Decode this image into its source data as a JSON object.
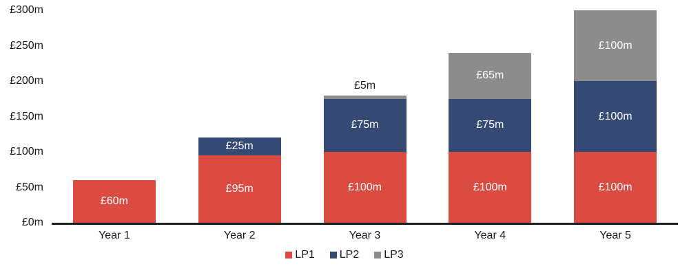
{
  "chart_data": {
    "type": "bar",
    "stacked": true,
    "title": "",
    "xlabel": "",
    "ylabel": "",
    "grid": false,
    "background": "#FFFFFF",
    "categories": [
      "Year 1",
      "Year 2",
      "Year 3",
      "Year 4",
      "Year 5"
    ],
    "series": [
      {
        "name": "LP1",
        "color": "#DC4B42",
        "values": [
          60,
          95,
          100,
          100,
          100
        ]
      },
      {
        "name": "LP2",
        "color": "#344A75",
        "values": [
          0,
          25,
          75,
          75,
          100
        ]
      },
      {
        "name": "LP3",
        "color": "#8C8C8C",
        "values": [
          0,
          0,
          5,
          65,
          100
        ]
      }
    ],
    "bars": [
      {
        "category": "Year 1",
        "segments": [
          {
            "series": "LP1",
            "value": 60,
            "label": "£60m"
          }
        ]
      },
      {
        "category": "Year 2",
        "segments": [
          {
            "series": "LP1",
            "value": 95,
            "label": "£95m"
          },
          {
            "series": "LP2",
            "value": 25,
            "label": "£25m"
          }
        ]
      },
      {
        "category": "Year 3",
        "segments": [
          {
            "series": "LP1",
            "value": 100,
            "label": "£100m"
          },
          {
            "series": "LP2",
            "value": 75,
            "label": "£75m"
          },
          {
            "series": "LP3",
            "value": 5,
            "label": "£5m"
          }
        ]
      },
      {
        "category": "Year 4",
        "segments": [
          {
            "series": "LP1",
            "value": 100,
            "label": "£100m"
          },
          {
            "series": "LP2",
            "value": 75,
            "label": "£75m"
          },
          {
            "series": "LP3",
            "value": 65,
            "label": "£65m"
          }
        ]
      },
      {
        "category": "Year 5",
        "segments": [
          {
            "series": "LP1",
            "value": 100,
            "label": "£100m"
          },
          {
            "series": "LP2",
            "value": 100,
            "label": "£100m"
          },
          {
            "series": "LP3",
            "value": 100,
            "label": "£100m"
          }
        ]
      }
    ],
    "y_axis": {
      "ylim": [
        0,
        300
      ],
      "tick_step": 50,
      "ticks": [
        {
          "value": 0,
          "label": "£0m"
        },
        {
          "value": 50,
          "label": "£50m"
        },
        {
          "value": 100,
          "label": "£100m"
        },
        {
          "value": 150,
          "label": "£150m"
        },
        {
          "value": 200,
          "label": "£200m"
        },
        {
          "value": 250,
          "label": "£250m"
        },
        {
          "value": 300,
          "label": "£300m"
        }
      ]
    },
    "legend": {
      "position": "bottom",
      "entries": [
        {
          "label": "LP1",
          "color": "#DC4B42"
        },
        {
          "label": "LP2",
          "color": "#344A75"
        },
        {
          "label": "LP3",
          "color": "#8C8C8C"
        }
      ]
    }
  },
  "colors": {
    "axis_line": "#1F1F1F",
    "tick_text": "#1A1A1A",
    "inside_bar_label": "#FFFFFF",
    "outside_bar_label": "#1A1A1A"
  }
}
